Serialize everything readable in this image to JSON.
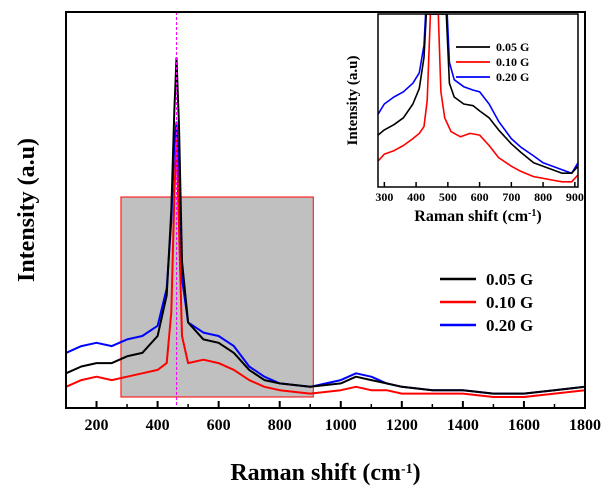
{
  "chart_data": [
    {
      "type": "line",
      "role": "main",
      "xlabel_main": "Raman shift (cm",
      "xlabel_sup": "-1",
      "xlabel_close": ")",
      "ylabel": "Intensity (a.u)",
      "xlim": [
        100,
        1800
      ],
      "xticks": [
        200,
        400,
        600,
        800,
        1000,
        1200,
        1400,
        1600,
        1800
      ],
      "ylim": [
        0,
        1
      ],
      "grid": false,
      "legend_position": "right",
      "reference_line_x": 462,
      "highlight_region_x": [
        280,
        910
      ],
      "series": [
        {
          "name": "0.05 G",
          "color": "#000000",
          "points": [
            [
              100,
              0.07
            ],
            [
              150,
              0.09
            ],
            [
              200,
              0.1
            ],
            [
              250,
              0.1
            ],
            [
              300,
              0.12
            ],
            [
              350,
              0.13
            ],
            [
              400,
              0.18
            ],
            [
              430,
              0.3
            ],
            [
              445,
              0.55
            ],
            [
              455,
              0.85
            ],
            [
              462,
              1.0
            ],
            [
              470,
              0.8
            ],
            [
              480,
              0.4
            ],
            [
              500,
              0.22
            ],
            [
              550,
              0.17
            ],
            [
              600,
              0.16
            ],
            [
              650,
              0.13
            ],
            [
              700,
              0.08
            ],
            [
              750,
              0.05
            ],
            [
              800,
              0.04
            ],
            [
              900,
              0.03
            ],
            [
              1000,
              0.04
            ],
            [
              1050,
              0.06
            ],
            [
              1100,
              0.05
            ],
            [
              1150,
              0.04
            ],
            [
              1200,
              0.03
            ],
            [
              1300,
              0.02
            ],
            [
              1400,
              0.02
            ],
            [
              1500,
              0.01
            ],
            [
              1600,
              0.01
            ],
            [
              1700,
              0.02
            ],
            [
              1800,
              0.03
            ]
          ]
        },
        {
          "name": "0.10 G",
          "color": "#ff0000",
          "points": [
            [
              100,
              0.03
            ],
            [
              150,
              0.05
            ],
            [
              200,
              0.06
            ],
            [
              250,
              0.05
            ],
            [
              300,
              0.06
            ],
            [
              350,
              0.07
            ],
            [
              400,
              0.08
            ],
            [
              430,
              0.1
            ],
            [
              445,
              0.25
            ],
            [
              455,
              0.6
            ],
            [
              462,
              0.76
            ],
            [
              470,
              0.5
            ],
            [
              480,
              0.18
            ],
            [
              500,
              0.1
            ],
            [
              550,
              0.11
            ],
            [
              600,
              0.1
            ],
            [
              650,
              0.08
            ],
            [
              700,
              0.05
            ],
            [
              750,
              0.03
            ],
            [
              800,
              0.02
            ],
            [
              900,
              0.01
            ],
            [
              1000,
              0.02
            ],
            [
              1050,
              0.03
            ],
            [
              1100,
              0.02
            ],
            [
              1150,
              0.02
            ],
            [
              1200,
              0.01
            ],
            [
              1300,
              0.01
            ],
            [
              1400,
              0.01
            ],
            [
              1500,
              0.0
            ],
            [
              1600,
              0.0
            ],
            [
              1700,
              0.01
            ],
            [
              1800,
              0.02
            ]
          ]
        },
        {
          "name": "0.20 G",
          "color": "#0000ff",
          "points": [
            [
              100,
              0.13
            ],
            [
              150,
              0.15
            ],
            [
              200,
              0.16
            ],
            [
              250,
              0.15
            ],
            [
              300,
              0.17
            ],
            [
              350,
              0.18
            ],
            [
              400,
              0.21
            ],
            [
              430,
              0.32
            ],
            [
              445,
              0.52
            ],
            [
              455,
              0.75
            ],
            [
              462,
              0.81
            ],
            [
              470,
              0.65
            ],
            [
              480,
              0.35
            ],
            [
              500,
              0.22
            ],
            [
              550,
              0.19
            ],
            [
              600,
              0.18
            ],
            [
              650,
              0.15
            ],
            [
              700,
              0.09
            ],
            [
              750,
              0.06
            ],
            [
              800,
              0.04
            ],
            [
              900,
              0.03
            ],
            [
              1000,
              0.05
            ],
            [
              1050,
              0.07
            ],
            [
              1100,
              0.06
            ],
            [
              1150,
              0.04
            ],
            [
              1200,
              0.03
            ],
            [
              1300,
              0.02
            ],
            [
              1400,
              0.02
            ],
            [
              1500,
              0.01
            ],
            [
              1600,
              0.01
            ],
            [
              1700,
              0.02
            ],
            [
              1800,
              0.03
            ]
          ]
        }
      ]
    },
    {
      "type": "line",
      "role": "inset",
      "xlabel_main": "Raman shift (cm",
      "xlabel_sup": "-1",
      "xlabel_close": ")",
      "ylabel": "Intensity (a.u)",
      "xlim": [
        280,
        910
      ],
      "xticks": [
        300,
        400,
        500,
        600,
        700,
        800,
        900
      ],
      "ylim": [
        0,
        1
      ],
      "grid": false,
      "legend_position": "top-right",
      "series": [
        {
          "name": "0.05 G",
          "color": "#000000",
          "points": [
            [
              280,
              0.3
            ],
            [
              300,
              0.33
            ],
            [
              330,
              0.36
            ],
            [
              360,
              0.4
            ],
            [
              390,
              0.48
            ],
            [
              410,
              0.57
            ],
            [
              425,
              0.75
            ],
            [
              432,
              1.0
            ],
            [
              495,
              1.0
            ],
            [
              505,
              0.6
            ],
            [
              520,
              0.52
            ],
            [
              550,
              0.48
            ],
            [
              580,
              0.47
            ],
            [
              600,
              0.44
            ],
            [
              630,
              0.4
            ],
            [
              660,
              0.33
            ],
            [
              700,
              0.25
            ],
            [
              730,
              0.2
            ],
            [
              770,
              0.14
            ],
            [
              800,
              0.12
            ],
            [
              830,
              0.1
            ],
            [
              860,
              0.08
            ],
            [
              890,
              0.08
            ],
            [
              910,
              0.12
            ]
          ]
        },
        {
          "name": "0.10 G",
          "color": "#ff0000",
          "points": [
            [
              280,
              0.15
            ],
            [
              300,
              0.19
            ],
            [
              330,
              0.21
            ],
            [
              360,
              0.24
            ],
            [
              390,
              0.28
            ],
            [
              410,
              0.31
            ],
            [
              425,
              0.35
            ],
            [
              435,
              0.5
            ],
            [
              445,
              1.0
            ],
            [
              470,
              1.0
            ],
            [
              478,
              0.55
            ],
            [
              490,
              0.4
            ],
            [
              510,
              0.32
            ],
            [
              540,
              0.29
            ],
            [
              570,
              0.31
            ],
            [
              600,
              0.3
            ],
            [
              630,
              0.24
            ],
            [
              660,
              0.17
            ],
            [
              700,
              0.12
            ],
            [
              730,
              0.09
            ],
            [
              770,
              0.06
            ],
            [
              800,
              0.05
            ],
            [
              830,
              0.04
            ],
            [
              860,
              0.03
            ],
            [
              890,
              0.03
            ],
            [
              910,
              0.07
            ]
          ]
        },
        {
          "name": "0.20 G",
          "color": "#0000ff",
          "points": [
            [
              280,
              0.42
            ],
            [
              300,
              0.48
            ],
            [
              330,
              0.52
            ],
            [
              360,
              0.55
            ],
            [
              390,
              0.6
            ],
            [
              410,
              0.66
            ],
            [
              425,
              0.82
            ],
            [
              430,
              1.0
            ],
            [
              498,
              1.0
            ],
            [
              505,
              0.72
            ],
            [
              520,
              0.62
            ],
            [
              550,
              0.58
            ],
            [
              580,
              0.56
            ],
            [
              600,
              0.55
            ],
            [
              630,
              0.48
            ],
            [
              660,
              0.38
            ],
            [
              700,
              0.28
            ],
            [
              730,
              0.23
            ],
            [
              770,
              0.18
            ],
            [
              800,
              0.14
            ],
            [
              830,
              0.12
            ],
            [
              860,
              0.1
            ],
            [
              890,
              0.08
            ],
            [
              910,
              0.14
            ]
          ]
        }
      ]
    }
  ]
}
